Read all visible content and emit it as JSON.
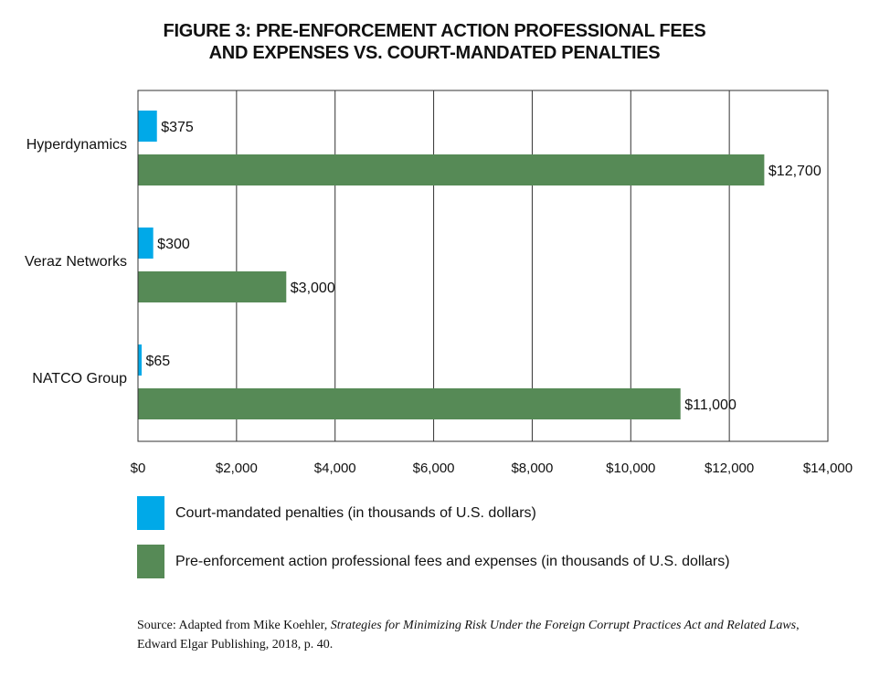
{
  "title_line1": "FIGURE 3: PRE-ENFORCEMENT ACTION PROFESSIONAL FEES",
  "title_line2": "AND EXPENSES VS. COURT-MANDATED PENALTIES",
  "colors": {
    "penalties": "#00a9e8",
    "fees": "#568a56",
    "grid": "#333333"
  },
  "chart_data": {
    "type": "bar",
    "orientation": "horizontal",
    "categories": [
      "Hyperdynamics",
      "Veraz Networks",
      "NATCO Group"
    ],
    "series": [
      {
        "name": "Court-mandated penalties (in thousands of U.S. dollars)",
        "values": [
          375,
          300,
          65
        ],
        "labels": [
          "$375",
          "$300",
          "$65"
        ]
      },
      {
        "name": "Pre-enforcement action professional fees and expenses (in thousands of U.S. dollars)",
        "values": [
          12700,
          3000,
          11000
        ],
        "labels": [
          "$12,700",
          "$3,000",
          "$11,000"
        ]
      }
    ],
    "xlim": [
      0,
      14000
    ],
    "xticks": [
      0,
      2000,
      4000,
      6000,
      8000,
      10000,
      12000,
      14000
    ],
    "xtick_labels": [
      "$0",
      "$2,000",
      "$4,000",
      "$6,000",
      "$8,000",
      "$10,000",
      "$12,000",
      "$14,000"
    ],
    "grid": true,
    "legend_position": "bottom"
  },
  "legend": {
    "penalties": "Court-mandated penalties (in thousands of U.S. dollars)",
    "fees": "Pre-enforcement action professional fees and expenses (in thousands of U.S. dollars)"
  },
  "source": {
    "prefix": "Source: Adapted from Mike Koehler, ",
    "book": "Strategies for Minimizing Risk Under the Foreign Corrupt Practices Act and Related Laws",
    "suffix": ", Edward Elgar Publishing, 2018, p. 40."
  }
}
